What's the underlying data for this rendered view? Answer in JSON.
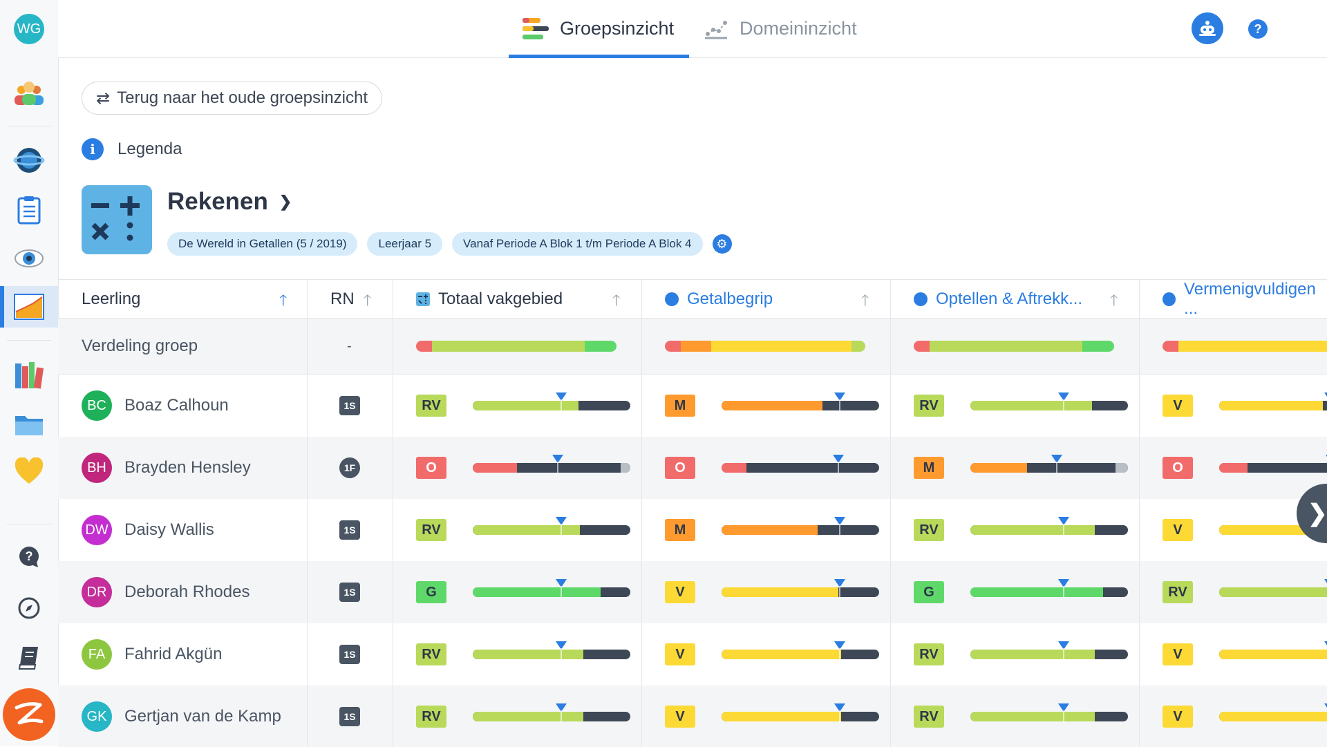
{
  "sidebar": {
    "user_initials": "WG",
    "items": [
      {
        "icon": "group-icon",
        "active": false
      },
      {
        "icon": "planet-icon",
        "active": false
      },
      {
        "icon": "clipboard-icon",
        "active": false
      },
      {
        "icon": "eye-icon",
        "active": false
      },
      {
        "icon": "chart-icon",
        "active": true
      },
      {
        "icon": "books-icon",
        "active": false
      },
      {
        "icon": "folder-icon",
        "active": false
      },
      {
        "icon": "heart-icon",
        "active": false
      },
      {
        "icon": "help-icon",
        "active": false
      },
      {
        "icon": "compass-icon",
        "active": false
      },
      {
        "icon": "book-icon",
        "active": false
      }
    ]
  },
  "header": {
    "tabs": [
      {
        "label": "Groepsinzicht",
        "active": true
      },
      {
        "label": "Domeininzicht",
        "active": false
      }
    ],
    "help_label": "?"
  },
  "back_button_label": "Terug naar het oude groepsinzicht",
  "legend_label": "Legenda",
  "subject": {
    "title": "Rekenen",
    "chips": [
      "De Wereld in Getallen (5 / 2019)",
      "Leerjaar 5",
      "Vanaf Periode A Blok 1 t/m Periode A Blok 4"
    ]
  },
  "table": {
    "headers": {
      "student": "Leerling",
      "rn": "RN",
      "domains": [
        "Totaal vakgebied",
        "Getalbegrip",
        "Optellen & Aftrekk...",
        "Vermenigvuldigen ..."
      ]
    },
    "distribution_label": "Verdeling groep",
    "distribution_rn": "-",
    "colors": {
      "red": "#f26b6b",
      "orange": "#ff9a2e",
      "yellow": "#fcd934",
      "lightgreen": "#b9d95a",
      "green": "#5fd86a",
      "dark": "#3d4756",
      "grey": "#b9bec5",
      "blue": "#2b7de1"
    },
    "distribution": [
      [
        [
          "red",
          0.08
        ],
        [
          "lightgreen",
          0.76
        ],
        [
          "green",
          0.16
        ]
      ],
      [
        [
          "red",
          0.08
        ],
        [
          "orange",
          0.15
        ],
        [
          "yellow",
          0.7
        ],
        [
          "lightgreen",
          0.07
        ]
      ],
      [
        [
          "red",
          0.08
        ],
        [
          "lightgreen",
          0.76
        ],
        [
          "green",
          0.16
        ]
      ],
      [
        [
          "red",
          0.08
        ],
        [
          "yellow",
          0.92
        ]
      ]
    ],
    "students": [
      {
        "initials": "BC",
        "name": "Boaz Calhoun",
        "avatar_color": "#1fb05a",
        "rn": "1S",
        "scores": [
          {
            "level": "RV",
            "color": "lightgreen",
            "fill": 0.67,
            "marker": 0.56
          },
          {
            "level": "M",
            "color": "orange",
            "fill": 0.64,
            "marker": 0.75
          },
          {
            "level": "RV",
            "color": "lightgreen",
            "fill": 0.77,
            "marker": 0.59
          },
          {
            "level": "V",
            "color": "yellow",
            "fill": 0.66,
            "marker": 0.7
          }
        ]
      },
      {
        "initials": "BH",
        "name": "Brayden Hensley",
        "avatar_color": "#c0267c",
        "rn": "1F",
        "scores": [
          {
            "level": "O",
            "color": "red",
            "fill": 0.28,
            "marker": 0.54,
            "grey_from": 0.94
          },
          {
            "level": "O",
            "color": "red",
            "fill": 0.16,
            "marker": 0.74
          },
          {
            "level": "M",
            "color": "orange",
            "fill": 0.36,
            "marker": 0.55,
            "grey_from": 0.92
          },
          {
            "level": "O",
            "color": "red",
            "fill": 0.18,
            "marker": 0.71
          }
        ]
      },
      {
        "initials": "DW",
        "name": "Daisy Wallis",
        "avatar_color": "#c42dd0",
        "rn": "1S",
        "scores": [
          {
            "level": "RV",
            "color": "lightgreen",
            "fill": 0.68,
            "marker": 0.56
          },
          {
            "level": "M",
            "color": "orange",
            "fill": 0.61,
            "marker": 0.75
          },
          {
            "level": "RV",
            "color": "lightgreen",
            "fill": 0.79,
            "marker": 0.59
          },
          {
            "level": "V",
            "color": "yellow",
            "fill": 0.66,
            "marker": 0.7
          }
        ]
      },
      {
        "initials": "DR",
        "name": "Deborah Rhodes",
        "avatar_color": "#c42d9a",
        "rn": "1S",
        "scores": [
          {
            "level": "G",
            "color": "green",
            "fill": 0.81,
            "marker": 0.56
          },
          {
            "level": "V",
            "color": "yellow",
            "fill": 0.74,
            "marker": 0.75
          },
          {
            "level": "G",
            "color": "green",
            "fill": 0.84,
            "marker": 0.59
          },
          {
            "level": "RV",
            "color": "lightgreen",
            "fill": 0.7,
            "marker": 0.7
          }
        ]
      },
      {
        "initials": "FA",
        "name": "Fahrid Akgün",
        "avatar_color": "#8dc63f",
        "rn": "1S",
        "scores": [
          {
            "level": "RV",
            "color": "lightgreen",
            "fill": 0.7,
            "marker": 0.56
          },
          {
            "level": "V",
            "color": "yellow",
            "fill": 0.76,
            "marker": 0.75
          },
          {
            "level": "RV",
            "color": "lightgreen",
            "fill": 0.79,
            "marker": 0.59
          },
          {
            "level": "V",
            "color": "yellow",
            "fill": 0.7,
            "marker": 0.7
          }
        ]
      },
      {
        "initials": "GK",
        "name": "Gertjan van de Kamp",
        "avatar_color": "#26b6c6",
        "rn": "1S",
        "scores": [
          {
            "level": "RV",
            "color": "lightgreen",
            "fill": 0.7,
            "marker": 0.56
          },
          {
            "level": "V",
            "color": "yellow",
            "fill": 0.76,
            "marker": 0.75
          },
          {
            "level": "RV",
            "color": "lightgreen",
            "fill": 0.79,
            "marker": 0.59
          },
          {
            "level": "V",
            "color": "yellow",
            "fill": 0.7,
            "marker": 0.7
          }
        ]
      }
    ]
  }
}
